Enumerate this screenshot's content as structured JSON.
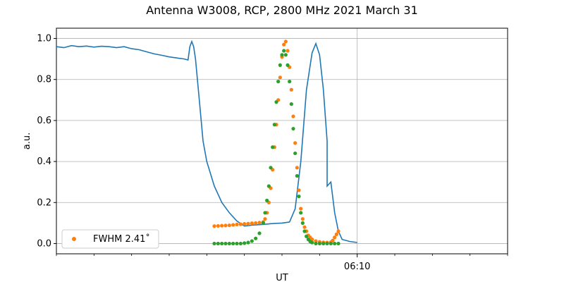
{
  "chart_data": {
    "type": "line",
    "title": "Antenna W3008, RCP, 2800 MHz 2021 March 31",
    "xlabel": "UT",
    "ylabel": "a.u.",
    "x_unit": "minutes",
    "xlim": [
      0,
      12
    ],
    "ylim": [
      -0.05,
      1.05
    ],
    "x_ticks": [
      {
        "x": 8,
        "label": "06:10"
      }
    ],
    "x_minor_ticks": [
      0,
      1,
      2,
      3,
      4,
      5,
      6,
      7,
      9,
      10,
      11,
      12
    ],
    "y_ticks": [
      0.0,
      0.2,
      0.4,
      0.6,
      0.8,
      1.0
    ],
    "y_tick_labels": [
      "0.0",
      "0.2",
      "0.4",
      "0.6",
      "0.8",
      "1.0"
    ],
    "grid": true,
    "legend_position": "lower left",
    "colors": {
      "line": "#1f77b4",
      "orange": "#ff7f0e",
      "green": "#2ca02c",
      "grid": "#b0b0b0"
    },
    "series": [
      {
        "kind": "line",
        "color": "#1f77b4",
        "points": [
          [
            0,
            0.96
          ],
          [
            0.2,
            0.955
          ],
          [
            0.4,
            0.965
          ],
          [
            0.6,
            0.96
          ],
          [
            0.8,
            0.963
          ],
          [
            1.0,
            0.958
          ],
          [
            1.2,
            0.962
          ],
          [
            1.4,
            0.96
          ],
          [
            1.6,
            0.955
          ],
          [
            1.8,
            0.96
          ],
          [
            2.0,
            0.95
          ],
          [
            2.2,
            0.945
          ],
          [
            2.4,
            0.935
          ],
          [
            2.6,
            0.925
          ],
          [
            2.8,
            0.918
          ],
          [
            3.0,
            0.91
          ],
          [
            3.2,
            0.905
          ],
          [
            3.4,
            0.9
          ],
          [
            3.5,
            0.895
          ],
          [
            3.55,
            0.96
          ],
          [
            3.6,
            0.985
          ],
          [
            3.65,
            0.96
          ],
          [
            3.7,
            0.9
          ],
          [
            3.8,
            0.7
          ],
          [
            3.9,
            0.5
          ],
          [
            4.0,
            0.4
          ],
          [
            4.2,
            0.28
          ],
          [
            4.4,
            0.2
          ],
          [
            4.6,
            0.15
          ],
          [
            4.8,
            0.11
          ],
          [
            5.0,
            0.085
          ],
          [
            5.2,
            0.09
          ],
          [
            5.4,
            0.092
          ],
          [
            5.6,
            0.095
          ],
          [
            5.8,
            0.098
          ],
          [
            6.0,
            0.1
          ],
          [
            6.2,
            0.105
          ],
          [
            6.35,
            0.17
          ],
          [
            6.5,
            0.4
          ],
          [
            6.65,
            0.75
          ],
          [
            6.8,
            0.93
          ],
          [
            6.9,
            0.975
          ],
          [
            7.0,
            0.92
          ],
          [
            7.1,
            0.75
          ],
          [
            7.2,
            0.5
          ],
          [
            7.3,
            0.3
          ],
          [
            7.4,
            0.15
          ],
          [
            7.5,
            0.06
          ],
          [
            7.6,
            0.02
          ],
          [
            7.8,
            0.01
          ],
          [
            8.0,
            0.005
          ],
          [
            7.2,
            0.28
          ]
        ]
      },
      {
        "kind": "scatter",
        "name": "FWHM 2.41$^\\circ$",
        "legend_label": "FWHM 2.41˚",
        "color": "#ff7f0e",
        "points": [
          [
            4.2,
            0.085
          ],
          [
            4.3,
            0.086
          ],
          [
            4.4,
            0.087
          ],
          [
            4.5,
            0.088
          ],
          [
            4.6,
            0.089
          ],
          [
            4.7,
            0.091
          ],
          [
            4.8,
            0.093
          ],
          [
            4.9,
            0.094
          ],
          [
            5.0,
            0.096
          ],
          [
            5.1,
            0.097
          ],
          [
            5.2,
            0.099
          ],
          [
            5.3,
            0.1
          ],
          [
            5.4,
            0.102
          ],
          [
            5.5,
            0.105
          ],
          [
            5.55,
            0.12
          ],
          [
            5.6,
            0.15
          ],
          [
            5.65,
            0.2
          ],
          [
            5.7,
            0.27
          ],
          [
            5.75,
            0.36
          ],
          [
            5.8,
            0.47
          ],
          [
            5.85,
            0.58
          ],
          [
            5.9,
            0.7
          ],
          [
            5.95,
            0.81
          ],
          [
            6.0,
            0.91
          ],
          [
            6.05,
            0.97
          ],
          [
            6.1,
            0.985
          ],
          [
            6.15,
            0.94
          ],
          [
            6.2,
            0.86
          ],
          [
            6.25,
            0.75
          ],
          [
            6.3,
            0.62
          ],
          [
            6.35,
            0.49
          ],
          [
            6.4,
            0.37
          ],
          [
            6.45,
            0.26
          ],
          [
            6.5,
            0.17
          ],
          [
            6.55,
            0.12
          ],
          [
            6.6,
            0.08
          ],
          [
            6.65,
            0.06
          ],
          [
            6.7,
            0.04
          ],
          [
            6.75,
            0.03
          ],
          [
            6.8,
            0.02
          ],
          [
            6.9,
            0.012
          ],
          [
            7.0,
            0.008
          ],
          [
            7.1,
            0.006
          ],
          [
            7.2,
            0.005
          ],
          [
            7.3,
            0.007
          ],
          [
            7.35,
            0.015
          ],
          [
            7.4,
            0.03
          ],
          [
            7.45,
            0.045
          ],
          [
            7.5,
            0.06
          ]
        ]
      },
      {
        "kind": "scatter",
        "color": "#2ca02c",
        "points": [
          [
            4.2,
            0.0
          ],
          [
            4.3,
            0.0
          ],
          [
            4.4,
            0.0
          ],
          [
            4.5,
            0.0
          ],
          [
            4.6,
            0.0
          ],
          [
            4.7,
            0.0
          ],
          [
            4.8,
            0.0
          ],
          [
            4.9,
            0.0
          ],
          [
            5.0,
            0.002
          ],
          [
            5.1,
            0.005
          ],
          [
            5.2,
            0.012
          ],
          [
            5.3,
            0.025
          ],
          [
            5.4,
            0.05
          ],
          [
            5.5,
            0.1
          ],
          [
            5.55,
            0.15
          ],
          [
            5.6,
            0.21
          ],
          [
            5.65,
            0.28
          ],
          [
            5.7,
            0.37
          ],
          [
            5.75,
            0.47
          ],
          [
            5.8,
            0.58
          ],
          [
            5.85,
            0.69
          ],
          [
            5.9,
            0.79
          ],
          [
            5.95,
            0.87
          ],
          [
            6.0,
            0.92
          ],
          [
            6.05,
            0.94
          ],
          [
            6.1,
            0.92
          ],
          [
            6.15,
            0.87
          ],
          [
            6.2,
            0.79
          ],
          [
            6.25,
            0.68
          ],
          [
            6.3,
            0.56
          ],
          [
            6.35,
            0.44
          ],
          [
            6.4,
            0.33
          ],
          [
            6.45,
            0.23
          ],
          [
            6.5,
            0.15
          ],
          [
            6.55,
            0.1
          ],
          [
            6.6,
            0.06
          ],
          [
            6.65,
            0.035
          ],
          [
            6.7,
            0.02
          ],
          [
            6.75,
            0.01
          ],
          [
            6.8,
            0.005
          ],
          [
            6.9,
            0.0
          ],
          [
            7.0,
            0.0
          ],
          [
            7.1,
            0.0
          ],
          [
            7.2,
            0.0
          ],
          [
            7.3,
            0.0
          ],
          [
            7.4,
            0.0
          ],
          [
            7.5,
            0.0
          ]
        ]
      }
    ],
    "vertical_grid_line": 8
  }
}
